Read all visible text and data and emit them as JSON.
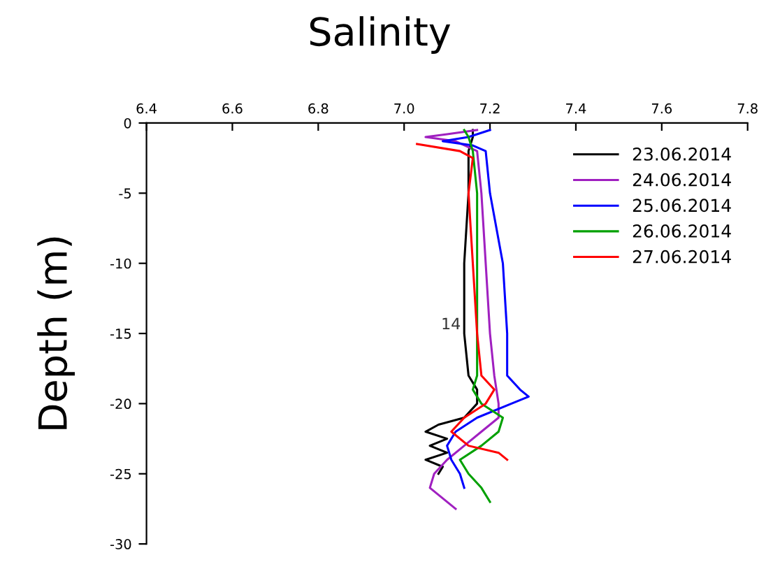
{
  "chart_data": {
    "type": "line",
    "title": "Salinity",
    "ylabel": "Depth (m)",
    "xlim": [
      6.4,
      7.8
    ],
    "xticks": [
      6.4,
      6.6,
      6.8,
      {
        "value": 7.0,
        "label": "7.0"
      },
      7.2,
      7.4,
      7.6,
      7.8
    ],
    "ylim": [
      -30,
      0
    ],
    "yticks": [
      0,
      -5,
      -10,
      -15,
      -20,
      -25,
      -30
    ],
    "grid": false,
    "legend": "top right",
    "marker": "none",
    "line_style": "solid",
    "annotations": [
      "14"
    ],
    "series": [
      {
        "name": "23.06.2014",
        "color": "#000000",
        "x": [
          7.16,
          7.16,
          7.15,
          7.15,
          7.14,
          7.14,
          7.15,
          7.17,
          7.17,
          7.14,
          7.08,
          7.05,
          7.1,
          7.06,
          7.1,
          7.05,
          7.09,
          7.08
        ],
        "values": [
          -0.5,
          -1,
          -2,
          -5,
          -10,
          -15,
          -18,
          -19,
          -20,
          -21,
          -21.5,
          -22,
          -22.5,
          -23,
          -23.5,
          -24,
          -24.5,
          -25
        ]
      },
      {
        "name": "24.06.2014",
        "color": "#a020c0",
        "x": [
          7.17,
          7.1,
          7.05,
          7.12,
          7.17,
          7.18,
          7.19,
          7.2,
          7.21,
          7.22,
          7.22,
          7.18,
          7.14,
          7.1,
          7.07,
          7.06,
          7.1,
          7.12
        ],
        "values": [
          -0.5,
          -0.8,
          -1,
          -1.3,
          -2,
          -5,
          -10,
          -15,
          -18,
          -20,
          -21,
          -22,
          -23,
          -24,
          -25,
          -26,
          -27,
          -27.5
        ]
      },
      {
        "name": "25.06.2014",
        "color": "#0000ff",
        "x": [
          7.2,
          7.15,
          7.09,
          7.16,
          7.19,
          7.2,
          7.23,
          7.24,
          7.24,
          7.27,
          7.29,
          7.25,
          7.17,
          7.12,
          7.1,
          7.11,
          7.13,
          7.14
        ],
        "values": [
          -0.5,
          -1,
          -1.3,
          -1.6,
          -2,
          -5,
          -10,
          -15,
          -18,
          -19,
          -19.5,
          -20,
          -21,
          -22,
          -23,
          -24,
          -25,
          -26
        ]
      },
      {
        "name": "26.06.2014",
        "color": "#00a000",
        "x": [
          7.14,
          7.15,
          7.16,
          7.17,
          7.17,
          7.17,
          7.17,
          7.16,
          7.18,
          7.23,
          7.22,
          7.18,
          7.13,
          7.15,
          7.18,
          7.2
        ],
        "values": [
          -0.5,
          -1,
          -2,
          -5,
          -10,
          -15,
          -18,
          -19,
          -20,
          -21,
          -22,
          -23,
          -24,
          -25,
          -26,
          -27
        ]
      },
      {
        "name": "27.06.2014",
        "color": "#ff0000",
        "x": [
          7.03,
          7.13,
          7.16,
          7.15,
          7.16,
          7.17,
          7.18,
          7.21,
          7.19,
          7.14,
          7.11,
          7.15,
          7.22,
          7.24
        ],
        "values": [
          -1.5,
          -2,
          -2.5,
          -5,
          -10,
          -15,
          -18,
          -19,
          -20,
          -21,
          -22,
          -23,
          -23.5,
          -24
        ]
      }
    ]
  }
}
